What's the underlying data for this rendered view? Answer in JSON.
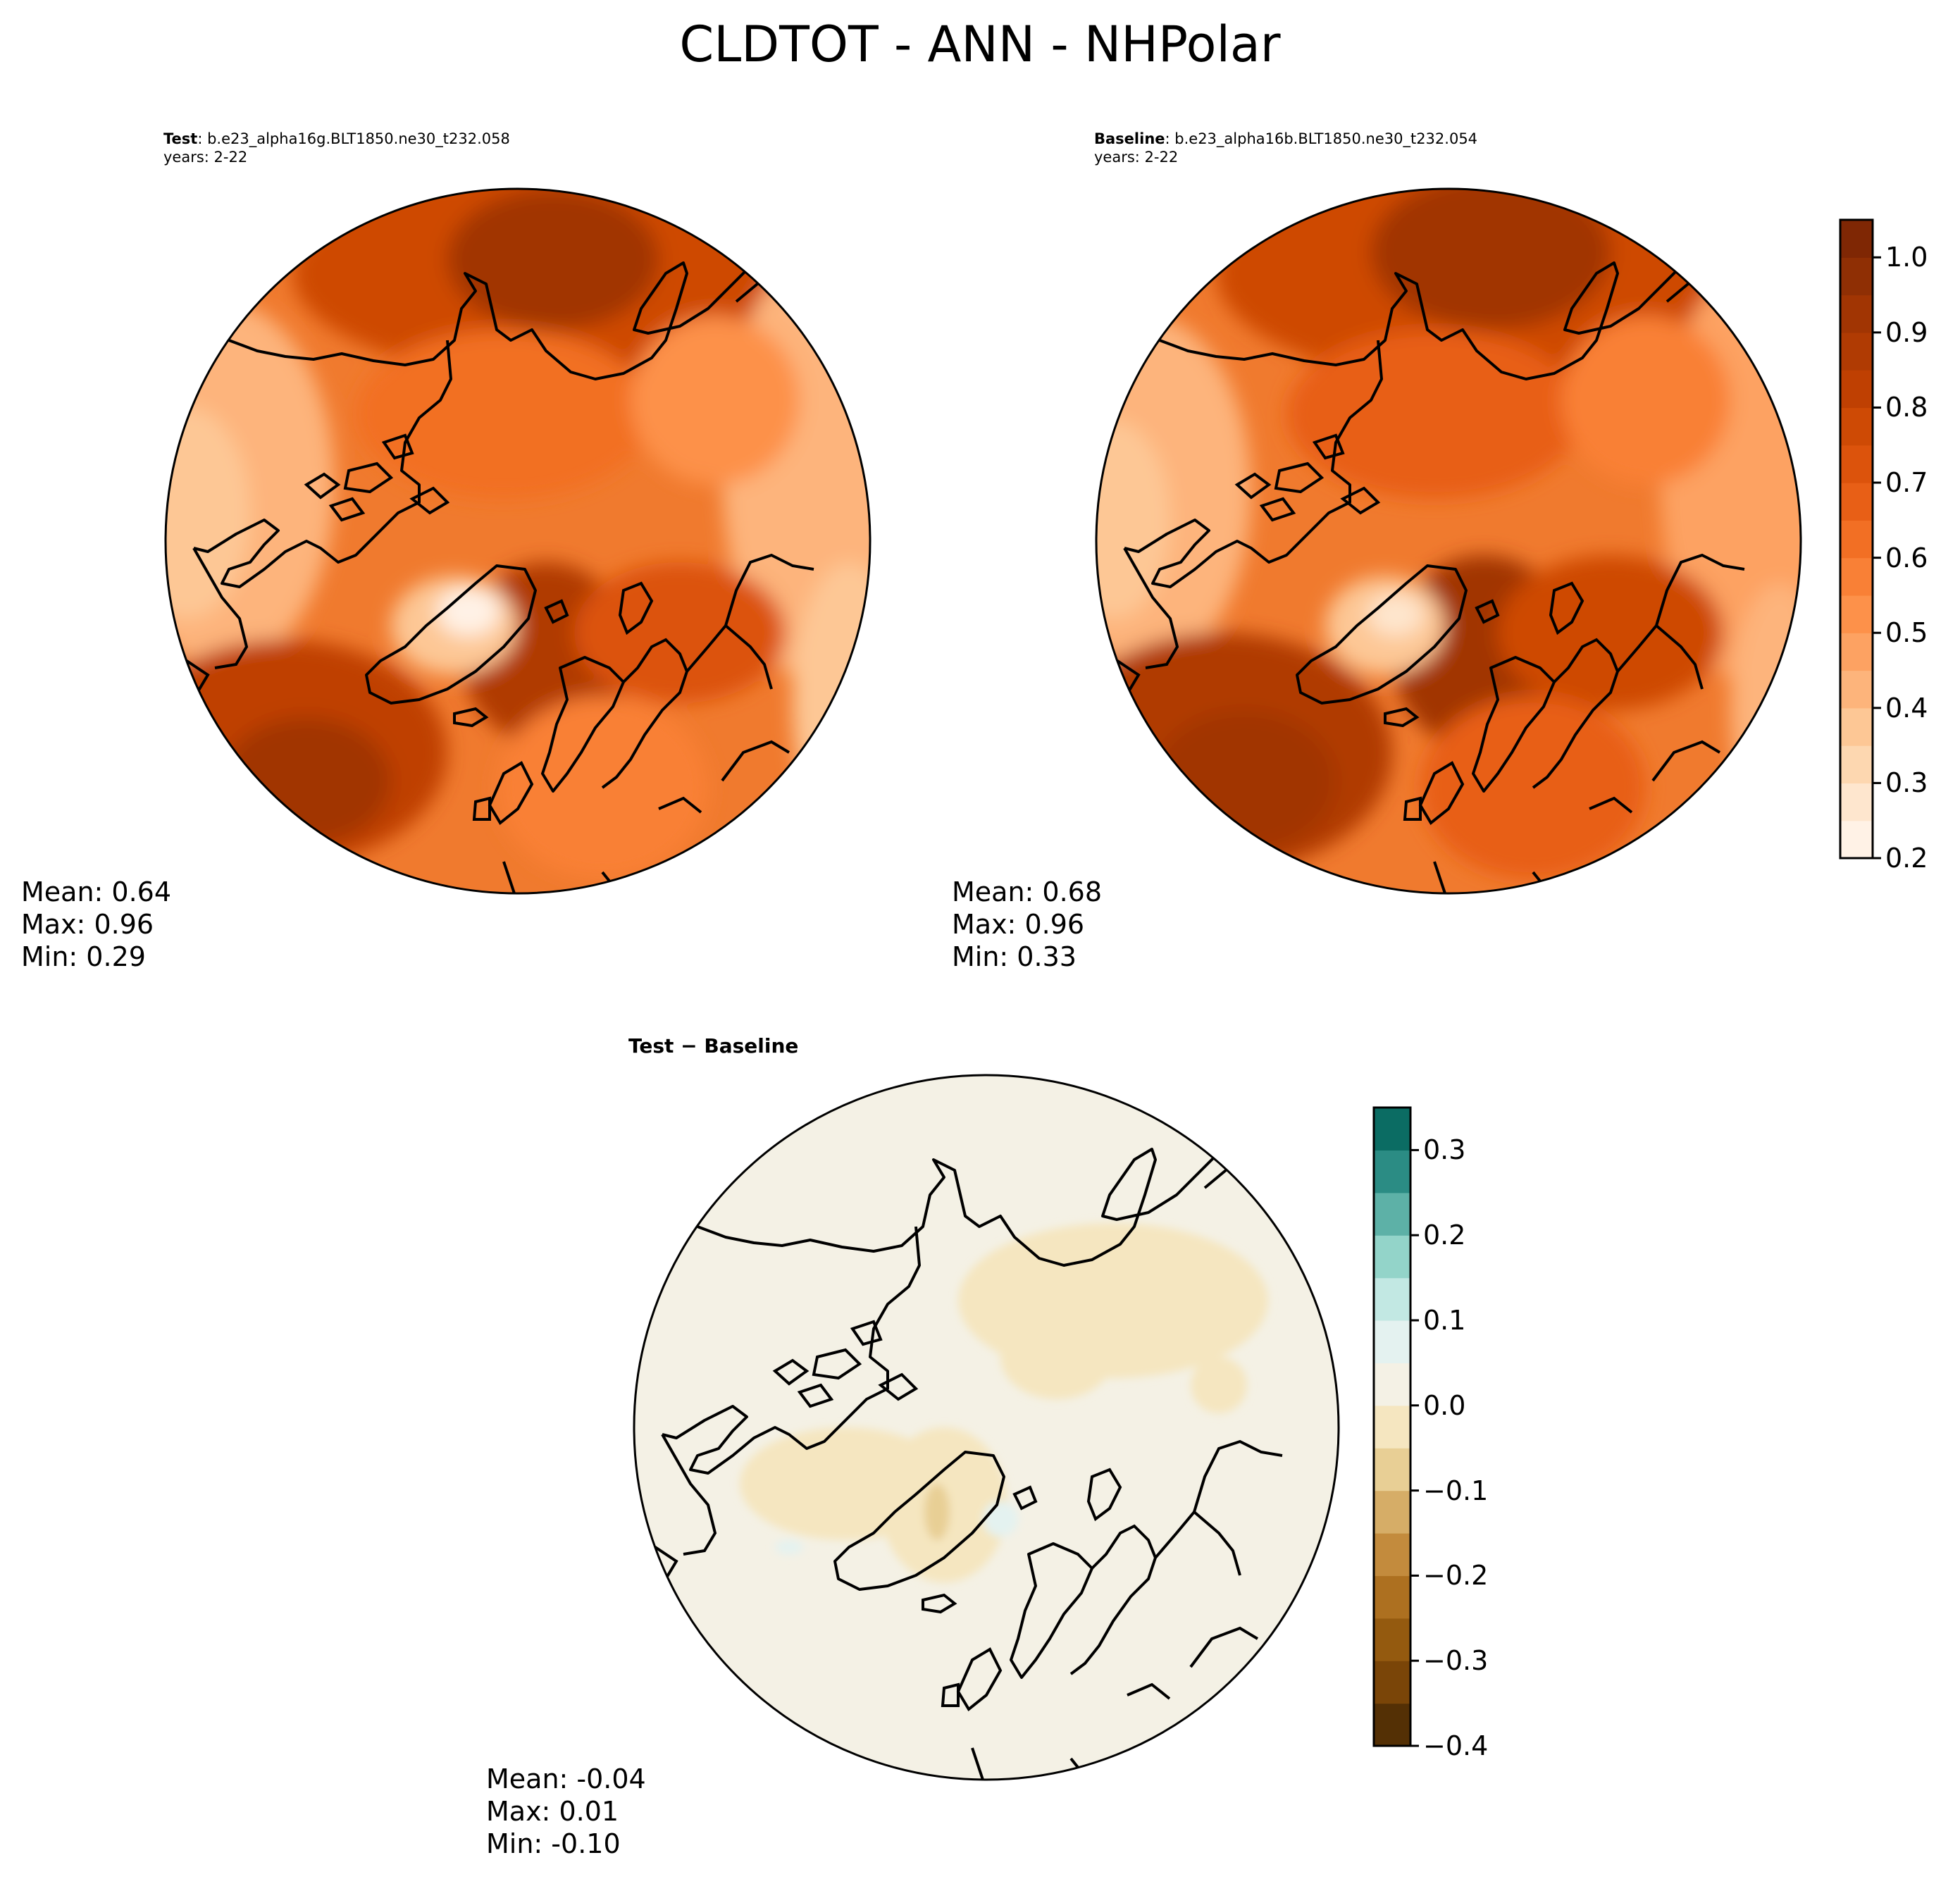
{
  "figure": {
    "suptitle": "CLDTOT - ANN - NHPolar"
  },
  "panels": {
    "test": {
      "label": "Test",
      "case": ": b.e23_alpha16g.BLT1850.ne30_t232.058",
      "years": "years: 2-22",
      "mean": "Mean:  0.64",
      "max": "Max:  0.96",
      "min": "Min:  0.29"
    },
    "baseline": {
      "label": "Baseline",
      "case": ": b.e23_alpha16b.BLT1850.ne30_t232.054",
      "years": "years: 2-22",
      "mean": "Mean:  0.68",
      "max": "Max:  0.96",
      "min": "Min:  0.33"
    },
    "diff": {
      "title": "Test − Baseline",
      "mean": "Mean: -0.04",
      "max": "Max:  0.01",
      "min": "Min: -0.10"
    }
  },
  "colorbars": {
    "main": {
      "ticks": [
        "0.2",
        "0.3",
        "0.4",
        "0.5",
        "0.6",
        "0.7",
        "0.8",
        "0.9",
        "1.0"
      ],
      "levels": [
        0.2,
        0.25,
        0.3,
        0.35,
        0.4,
        0.45,
        0.5,
        0.55,
        0.6,
        0.65,
        0.7,
        0.75,
        0.8,
        0.85,
        0.9,
        0.95,
        1.0,
        1.05
      ],
      "colors": [
        "#fff2e6",
        "#fee6ce",
        "#fdd7b0",
        "#fdc795",
        "#fdb47b",
        "#fda262",
        "#fd914a",
        "#f98036",
        "#f26f24",
        "#e85f16",
        "#dc530c",
        "#ce4a05",
        "#bf4002",
        "#b03b03",
        "#a13503",
        "#8f2f04",
        "#7f2704"
      ]
    },
    "diff": {
      "ticks": [
        "−0.4",
        "−0.3",
        "−0.2",
        "−0.1",
        "0.0",
        "0.1",
        "0.2",
        "0.3"
      ],
      "levels": [
        -0.4,
        -0.35,
        -0.3,
        -0.25,
        -0.2,
        -0.15,
        -0.1,
        -0.05,
        0.0,
        0.05,
        0.1,
        0.15,
        0.2,
        0.25,
        0.3,
        0.35
      ],
      "colors": [
        "#543005",
        "#7a4508",
        "#945a0f",
        "#ad7020",
        "#c38b3d",
        "#d6ad67",
        "#e8cf95",
        "#f5e6c0",
        "#f4f1e5",
        "#e4f2f0",
        "#c2e8e3",
        "#93d4c9",
        "#5db1a7",
        "#2b8c84",
        "#0b6c63",
        "#01463c"
      ]
    }
  }
}
